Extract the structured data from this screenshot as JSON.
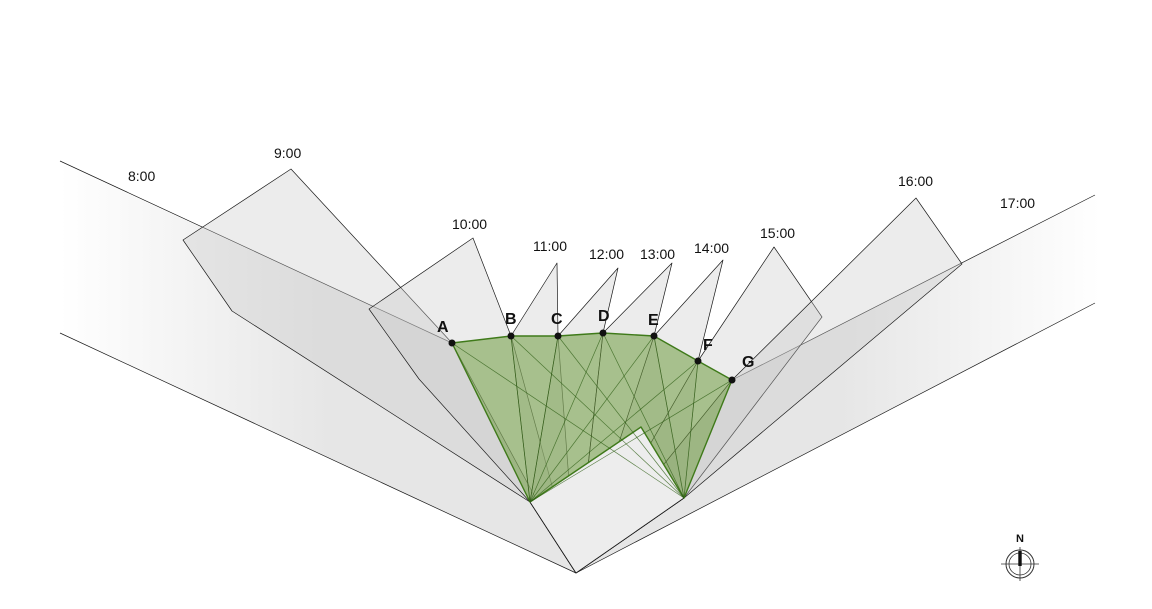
{
  "time_labels": [
    "8:00",
    "9:00",
    "10:00",
    "11:00",
    "12:00",
    "13:00",
    "14:00",
    "15:00",
    "16:00",
    "17:00"
  ],
  "points": [
    "A",
    "B",
    "C",
    "D",
    "E",
    "F",
    "G"
  ],
  "compass": {
    "label": "N"
  },
  "colors": {
    "shadow_fill": "#c8c8c8",
    "edge": "#1a1a1a",
    "green_fill": "#6f9d3f",
    "green_edge": "#3f7a1a",
    "footprint": "#ededed"
  }
}
